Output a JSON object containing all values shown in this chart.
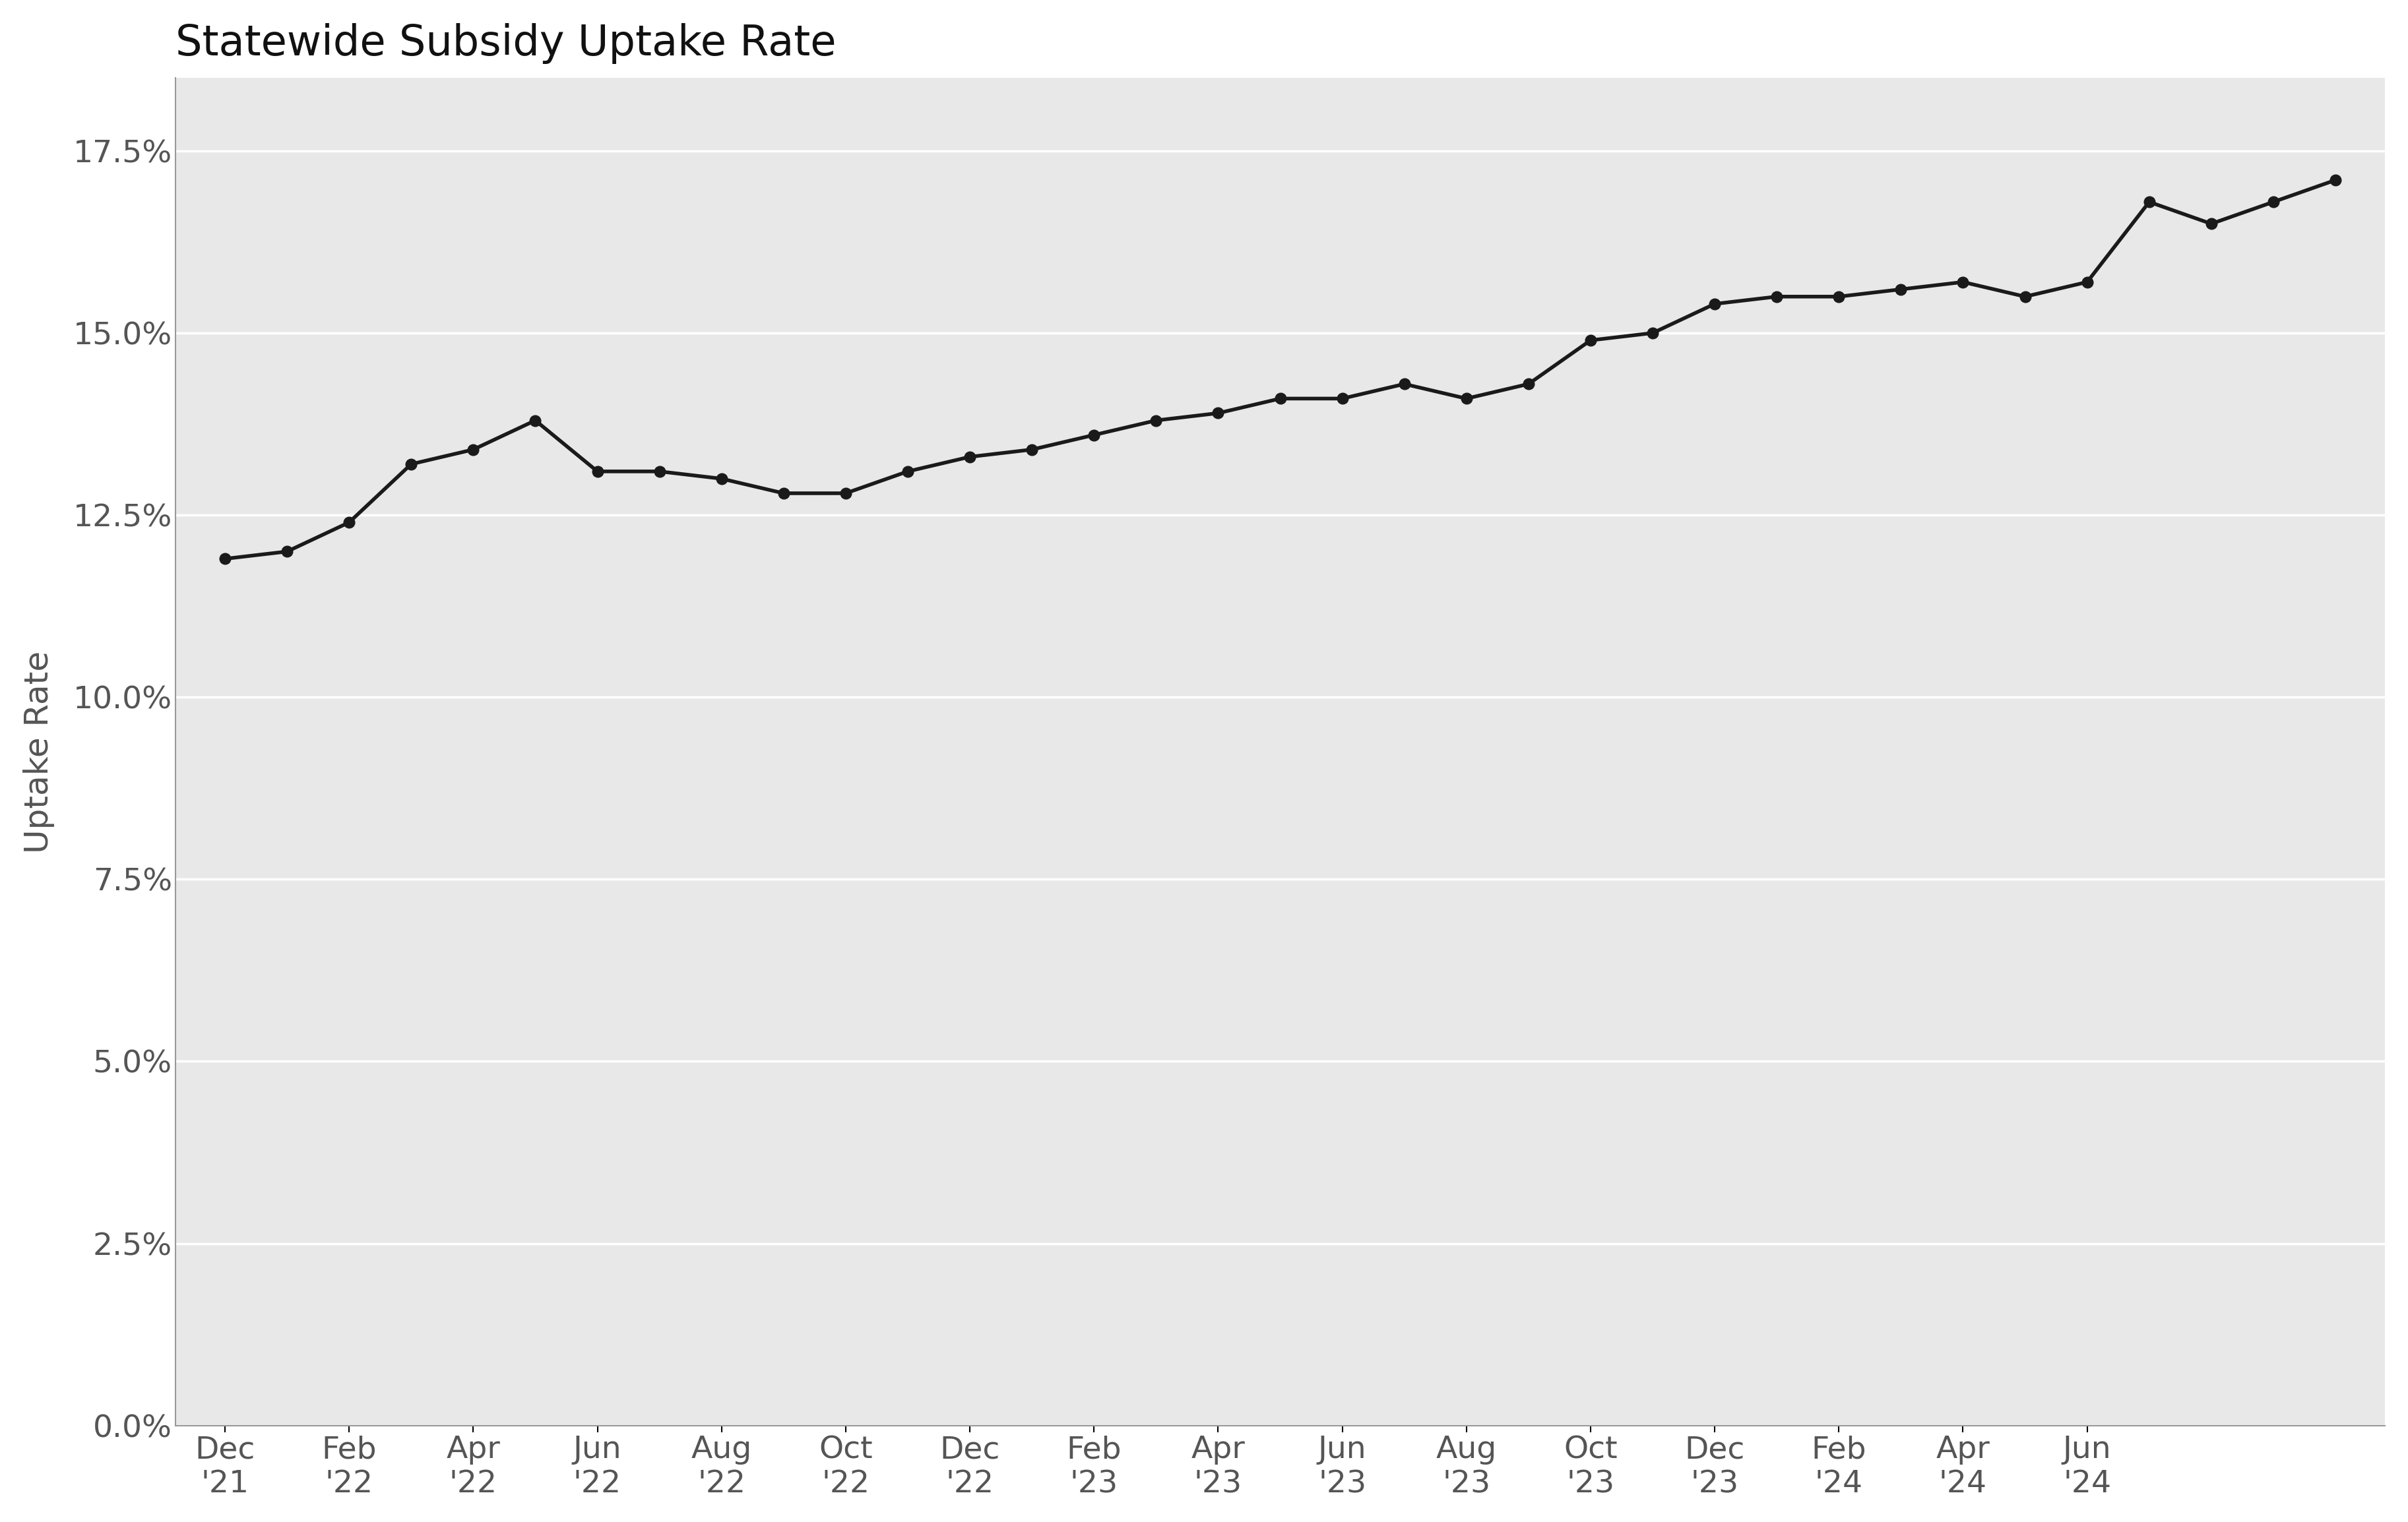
{
  "title": "Statewide Subsidy Uptake Rate",
  "ylabel": "Uptake Rate",
  "background_color": "#e8e8e8",
  "fig_background": "#ffffff",
  "line_color": "#1a1a1a",
  "grid_color": "#ffffff",
  "tick_label_color": "#555555",
  "title_color": "#111111",
  "ylim": [
    0.0,
    0.185
  ],
  "yticks": [
    0.0,
    0.025,
    0.05,
    0.075,
    0.1,
    0.125,
    0.15,
    0.175
  ],
  "x_labels": [
    "Dec\n'21",
    "Feb\n'22",
    "Apr\n'22",
    "Jun\n'22",
    "Aug\n'22",
    "Oct\n'22",
    "Dec\n'22",
    "Feb\n'23",
    "Apr\n'23",
    "Jun\n'23",
    "Aug\n'23",
    "Oct\n'23",
    "Dec\n'23",
    "Feb\n'24",
    "Apr\n'24",
    "Jun\n'24"
  ],
  "y_values": [
    0.119,
    0.12,
    0.124,
    0.132,
    0.134,
    0.138,
    0.131,
    0.131,
    0.13,
    0.128,
    0.128,
    0.131,
    0.133,
    0.134,
    0.136,
    0.138,
    0.139,
    0.141,
    0.141,
    0.143,
    0.141,
    0.143,
    0.149,
    0.15,
    0.154,
    0.155,
    0.155,
    0.156,
    0.157,
    0.155,
    0.157,
    0.168,
    0.165,
    0.168,
    0.171
  ],
  "title_fontsize": 46,
  "axis_label_fontsize": 36,
  "tick_fontsize": 34
}
